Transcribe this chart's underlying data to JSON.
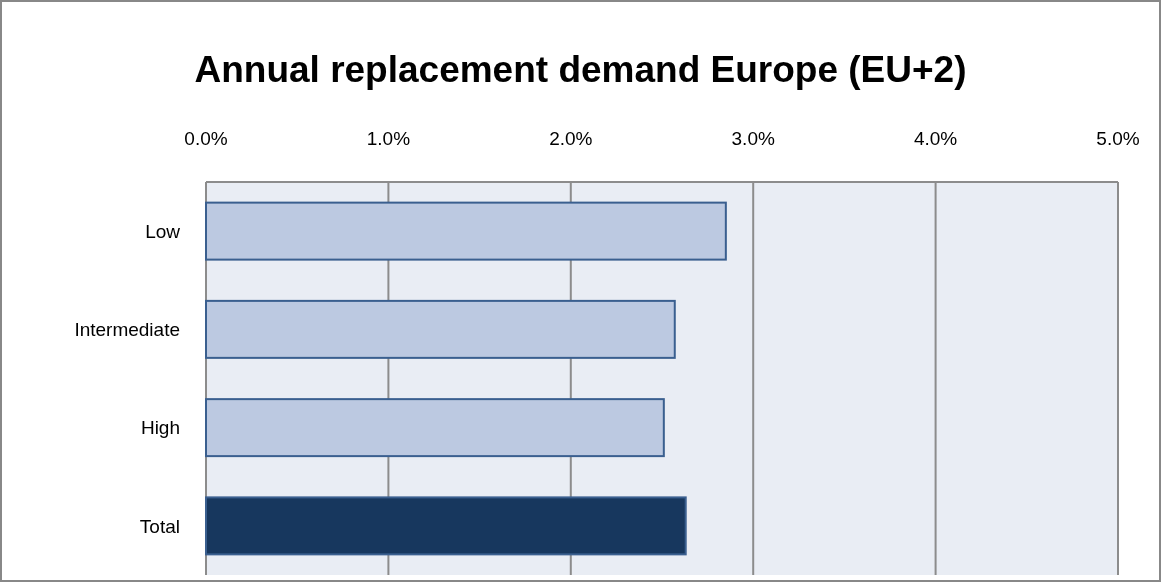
{
  "chart_data": {
    "type": "bar",
    "orientation": "horizontal",
    "title": "Annual replacement demand Europe (EU+2)",
    "categories": [
      "Low",
      "Intermediate",
      "High",
      "Total"
    ],
    "values": [
      2.85,
      2.57,
      2.51,
      2.63
    ],
    "colors": [
      "#bcc9e1",
      "#bcc9e1",
      "#bcc9e1",
      "#17375e"
    ],
    "xlim": [
      0,
      5
    ],
    "xticks": [
      {
        "value": 0,
        "label": "0.0%"
      },
      {
        "value": 1,
        "label": "1.0%"
      },
      {
        "value": 2,
        "label": "2.0%"
      },
      {
        "value": 3,
        "label": "3.0%"
      },
      {
        "value": 4,
        "label": "4.0%"
      },
      {
        "value": 5,
        "label": "5.0%"
      }
    ],
    "grid": "x"
  }
}
